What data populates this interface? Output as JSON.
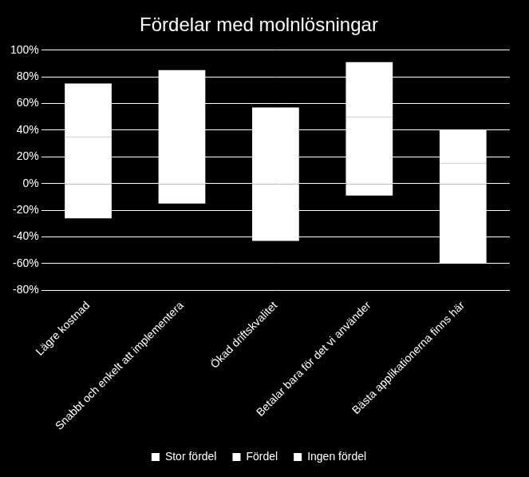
{
  "chart_data": {
    "type": "bar",
    "title": "Fördelar med molnlösningar",
    "categories": [
      "Lägre kostnad",
      "Snabbt och enkelt att implementera",
      "Ökad driftskvalitet",
      "Betalar bara för det vi använder",
      "Bästa applikationerna finns här"
    ],
    "series": [
      {
        "name": "Stor fördel",
        "color": "#ffffff",
        "values": [
          35,
          40,
          22,
          50,
          15
        ]
      },
      {
        "name": "Fördel",
        "color": "#ffffff",
        "values": [
          40,
          45,
          35,
          41,
          25
        ]
      },
      {
        "name": "Ingen fördel",
        "color": "#ffffff",
        "values": [
          -26,
          -15,
          -43,
          -9,
          -60
        ]
      }
    ],
    "stacked": true,
    "ylim": [
      -80,
      100
    ],
    "yticks": [
      {
        "value": 100,
        "label": "100%"
      },
      {
        "value": 80,
        "label": "80%"
      },
      {
        "value": 60,
        "label": "60%"
      },
      {
        "value": 40,
        "label": "40%"
      },
      {
        "value": 20,
        "label": "20%"
      },
      {
        "value": 0,
        "label": "0%"
      },
      {
        "value": -20,
        "label": "-20%"
      },
      {
        "value": -40,
        "label": "-40%"
      },
      {
        "value": -60,
        "label": "-60%"
      },
      {
        "value": -80,
        "label": "-80%"
      }
    ],
    "grid": true,
    "legend": "bottom"
  }
}
